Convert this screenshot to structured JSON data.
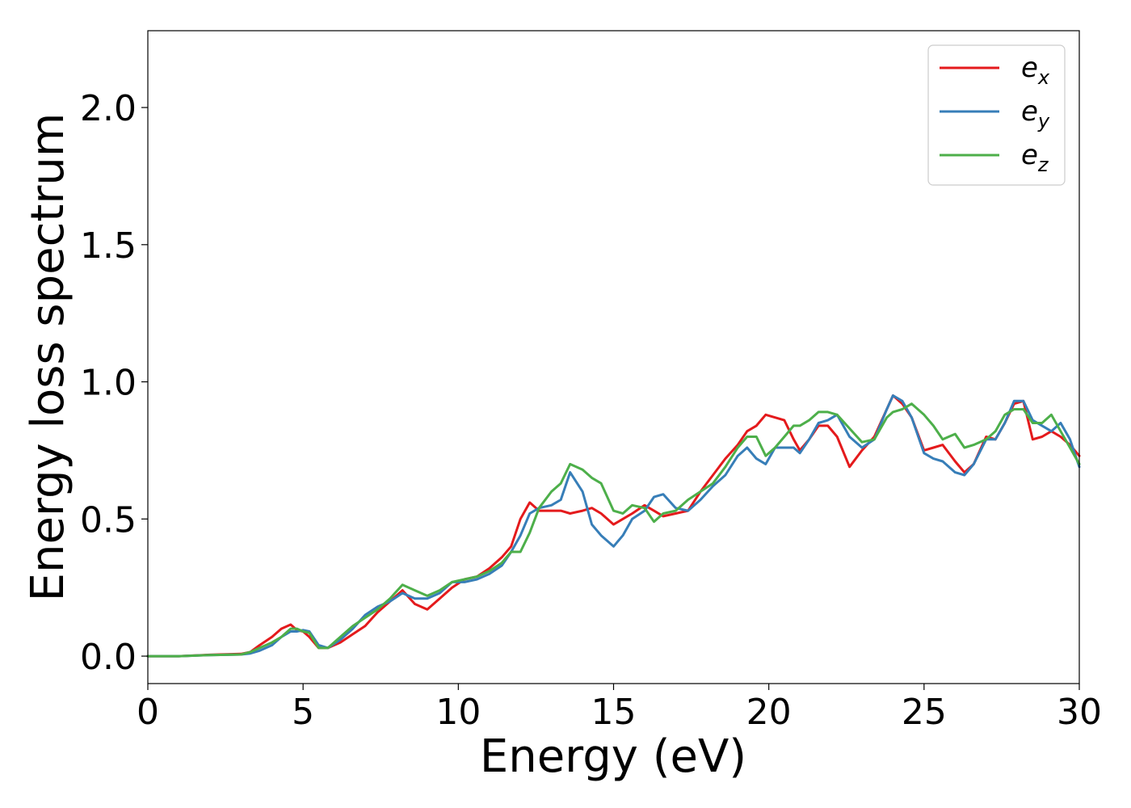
{
  "chart_data": {
    "type": "line",
    "xlabel": "Energy (eV)",
    "ylabel": "Energy loss spectrum",
    "xlim": [
      0,
      30
    ],
    "ylim": [
      -0.1,
      2.28
    ],
    "xticks": [
      0,
      5,
      10,
      15,
      20,
      25,
      30
    ],
    "yticks": [
      0.0,
      0.5,
      1.0,
      1.5,
      2.0
    ],
    "grid": false,
    "legend_position": "top-right",
    "series": [
      {
        "name": "e",
        "subscript": "x",
        "color": "#e41a1c",
        "x": [
          0,
          1,
          2,
          3,
          3.3,
          3.6,
          4.0,
          4.3,
          4.6,
          4.8,
          5.0,
          5.2,
          5.5,
          5.8,
          6.2,
          6.6,
          7.0,
          7.4,
          7.8,
          8.2,
          8.6,
          9.0,
          9.4,
          9.8,
          10.2,
          10.6,
          11.0,
          11.4,
          11.7,
          12.0,
          12.3,
          12.6,
          13.0,
          13.3,
          13.6,
          14.0,
          14.3,
          14.6,
          15.0,
          15.3,
          15.6,
          16.0,
          16.3,
          16.6,
          17.0,
          17.4,
          17.8,
          18.2,
          18.6,
          19.0,
          19.3,
          19.6,
          19.9,
          20.2,
          20.5,
          20.8,
          21.0,
          21.3,
          21.6,
          21.9,
          22.2,
          22.6,
          23.0,
          23.4,
          23.8,
          24.0,
          24.3,
          24.6,
          25.0,
          25.3,
          25.6,
          26.0,
          26.3,
          26.6,
          27.0,
          27.3,
          27.6,
          27.9,
          28.2,
          28.5,
          28.8,
          29.1,
          29.4,
          29.7,
          30.0
        ],
        "y": [
          0.0,
          0.0,
          0.005,
          0.008,
          0.015,
          0.04,
          0.07,
          0.1,
          0.115,
          0.095,
          0.09,
          0.07,
          0.03,
          0.03,
          0.05,
          0.08,
          0.11,
          0.16,
          0.2,
          0.24,
          0.19,
          0.17,
          0.21,
          0.25,
          0.28,
          0.29,
          0.32,
          0.36,
          0.4,
          0.5,
          0.56,
          0.53,
          0.53,
          0.53,
          0.52,
          0.53,
          0.54,
          0.52,
          0.48,
          0.5,
          0.52,
          0.55,
          0.53,
          0.51,
          0.52,
          0.53,
          0.6,
          0.66,
          0.72,
          0.77,
          0.82,
          0.84,
          0.88,
          0.87,
          0.86,
          0.79,
          0.75,
          0.79,
          0.84,
          0.84,
          0.8,
          0.69,
          0.75,
          0.8,
          0.9,
          0.95,
          0.92,
          0.87,
          0.75,
          0.76,
          0.77,
          0.71,
          0.67,
          0.7,
          0.8,
          0.79,
          0.85,
          0.92,
          0.93,
          0.79,
          0.8,
          0.82,
          0.8,
          0.77,
          0.73
        ]
      },
      {
        "name": "e",
        "subscript": "y",
        "color": "#377eb8",
        "x": [
          0,
          1,
          2,
          3,
          3.3,
          3.6,
          4.0,
          4.3,
          4.6,
          4.8,
          5.0,
          5.2,
          5.5,
          5.8,
          6.2,
          6.6,
          7.0,
          7.4,
          7.8,
          8.2,
          8.6,
          9.0,
          9.4,
          9.8,
          10.2,
          10.6,
          11.0,
          11.4,
          11.7,
          12.0,
          12.3,
          12.6,
          13.0,
          13.3,
          13.6,
          14.0,
          14.3,
          14.6,
          15.0,
          15.3,
          15.6,
          16.0,
          16.3,
          16.6,
          17.0,
          17.4,
          17.8,
          18.2,
          18.6,
          19.0,
          19.3,
          19.6,
          19.9,
          20.2,
          20.5,
          20.8,
          21.0,
          21.3,
          21.6,
          21.9,
          22.2,
          22.6,
          23.0,
          23.4,
          23.8,
          24.0,
          24.3,
          24.6,
          25.0,
          25.3,
          25.6,
          26.0,
          26.3,
          26.6,
          27.0,
          27.3,
          27.6,
          27.9,
          28.2,
          28.5,
          28.8,
          29.1,
          29.4,
          29.7,
          30.0
        ],
        "y": [
          0.0,
          0.0,
          0.004,
          0.006,
          0.01,
          0.02,
          0.04,
          0.07,
          0.09,
          0.09,
          0.095,
          0.09,
          0.04,
          0.03,
          0.06,
          0.1,
          0.15,
          0.18,
          0.2,
          0.23,
          0.21,
          0.21,
          0.23,
          0.27,
          0.27,
          0.28,
          0.3,
          0.33,
          0.38,
          0.44,
          0.52,
          0.54,
          0.55,
          0.57,
          0.67,
          0.6,
          0.48,
          0.44,
          0.4,
          0.44,
          0.5,
          0.53,
          0.58,
          0.59,
          0.54,
          0.53,
          0.57,
          0.62,
          0.66,
          0.73,
          0.76,
          0.72,
          0.7,
          0.76,
          0.76,
          0.76,
          0.74,
          0.79,
          0.85,
          0.86,
          0.88,
          0.8,
          0.76,
          0.79,
          0.9,
          0.95,
          0.93,
          0.87,
          0.74,
          0.72,
          0.71,
          0.67,
          0.66,
          0.7,
          0.79,
          0.79,
          0.85,
          0.93,
          0.93,
          0.86,
          0.84,
          0.82,
          0.85,
          0.79,
          0.69
        ]
      },
      {
        "name": "e",
        "subscript": "z",
        "color": "#4daf4a",
        "x": [
          0,
          1,
          2,
          3,
          3.3,
          3.6,
          4.0,
          4.3,
          4.6,
          4.8,
          5.0,
          5.2,
          5.5,
          5.8,
          6.2,
          6.6,
          7.0,
          7.4,
          7.8,
          8.2,
          8.6,
          9.0,
          9.4,
          9.8,
          10.2,
          10.6,
          11.0,
          11.4,
          11.7,
          12.0,
          12.3,
          12.6,
          13.0,
          13.3,
          13.6,
          14.0,
          14.3,
          14.6,
          15.0,
          15.3,
          15.6,
          16.0,
          16.3,
          16.6,
          17.0,
          17.4,
          17.8,
          18.2,
          18.6,
          19.0,
          19.3,
          19.6,
          19.9,
          20.2,
          20.5,
          20.8,
          21.0,
          21.3,
          21.6,
          21.9,
          22.2,
          22.6,
          23.0,
          23.4,
          23.8,
          24.0,
          24.3,
          24.6,
          25.0,
          25.3,
          25.6,
          26.0,
          26.3,
          26.6,
          27.0,
          27.3,
          27.6,
          27.9,
          28.2,
          28.5,
          28.8,
          29.1,
          29.4,
          29.7,
          30.0
        ],
        "y": [
          0.0,
          0.0,
          0.004,
          0.006,
          0.015,
          0.03,
          0.05,
          0.07,
          0.1,
          0.1,
          0.09,
          0.085,
          0.03,
          0.03,
          0.07,
          0.11,
          0.14,
          0.17,
          0.21,
          0.26,
          0.24,
          0.22,
          0.24,
          0.27,
          0.28,
          0.29,
          0.31,
          0.34,
          0.38,
          0.38,
          0.45,
          0.54,
          0.6,
          0.63,
          0.7,
          0.68,
          0.65,
          0.63,
          0.53,
          0.52,
          0.55,
          0.54,
          0.49,
          0.52,
          0.53,
          0.57,
          0.6,
          0.63,
          0.69,
          0.76,
          0.8,
          0.8,
          0.73,
          0.76,
          0.8,
          0.84,
          0.84,
          0.86,
          0.89,
          0.89,
          0.88,
          0.83,
          0.78,
          0.79,
          0.87,
          0.89,
          0.9,
          0.92,
          0.88,
          0.84,
          0.79,
          0.81,
          0.76,
          0.77,
          0.79,
          0.82,
          0.88,
          0.9,
          0.9,
          0.85,
          0.85,
          0.88,
          0.82,
          0.76,
          0.7
        ]
      }
    ]
  }
}
